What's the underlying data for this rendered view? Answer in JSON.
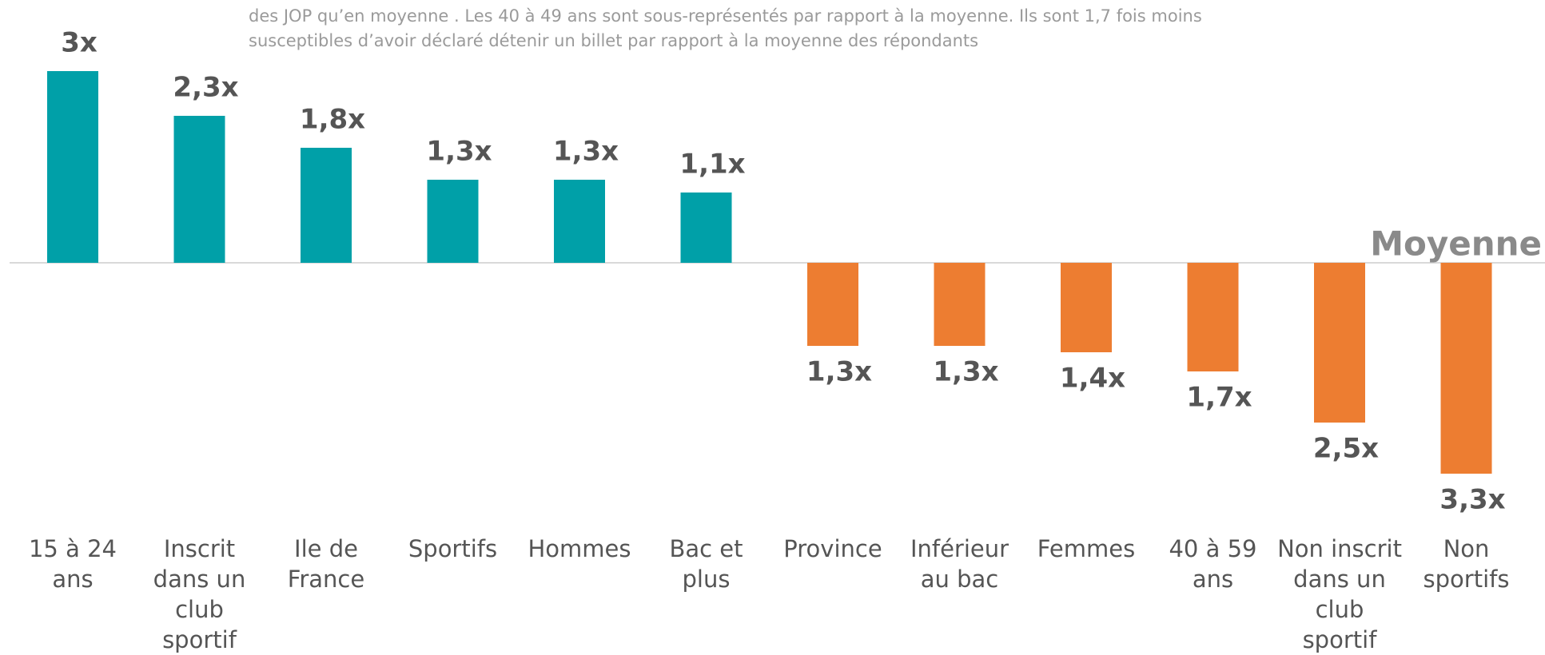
{
  "chart_data": {
    "type": "bar",
    "subtitle": [
      "des JOP qu’en moyenne . Les 40 à 49 ans sont sous-représentés par rapport à la moyenne. Ils sont 1,7 fois moins",
      "susceptibles d’avoir déclaré détenir un billet par rapport à la moyenne des répondants"
    ],
    "annotation": "Moyenne",
    "categories": [
      "15 à 24\nans",
      "Inscrit\ndans un\nclub\nsportif",
      "Ile de\nFrance",
      "Sportifs",
      "Hommes",
      "Bac et\nplus",
      "Province",
      "Inférieur\nau bac",
      "Femmes",
      "40 à 59\nans",
      "Non inscrit\ndans un\nclub\nsportif",
      "Non\nsportifs"
    ],
    "values": [
      3,
      2.3,
      1.8,
      1.3,
      1.3,
      1.1,
      -1.3,
      -1.3,
      -1.4,
      -1.7,
      -2.5,
      -3.3
    ],
    "value_labels": [
      "3x",
      "2,3x",
      "1,8x",
      "1,3x",
      "1,3x",
      "1,1x",
      "1,3x",
      "1,3x",
      "1,4x",
      "1,7x",
      "2,5x",
      "3,3x"
    ],
    "colors": [
      "#00a0a8",
      "#00a0a8",
      "#00a0a8",
      "#00a0a8",
      "#00a0a8",
      "#00a0a8",
      "#ed7d31",
      "#ed7d31",
      "#ed7d31",
      "#ed7d31",
      "#ed7d31",
      "#ed7d31"
    ],
    "ylim": [
      -4,
      4
    ]
  }
}
